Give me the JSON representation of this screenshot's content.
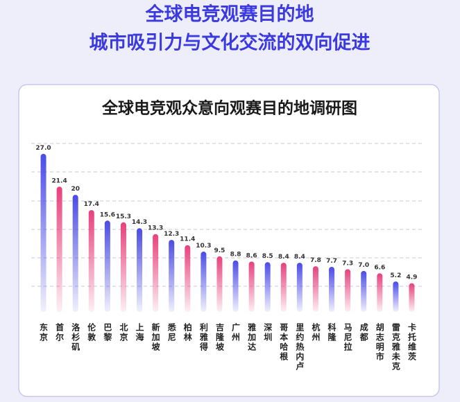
{
  "header": {
    "title_line1": "全球电竞观赛目的地",
    "title_line2": "城市吸引力与文化交流的双向促进"
  },
  "chart_data": {
    "type": "bar",
    "title": "全球电竞观众意向观赛目的地调研图",
    "categories": [
      "东京",
      "首尔",
      "洛杉矶",
      "伦敦",
      "巴黎",
      "北京",
      "上海",
      "新加坡",
      "悉尼",
      "柏林",
      "利雅得",
      "吉隆坡",
      "广州",
      "雅加达",
      "深圳",
      "哥本哈根",
      "里约热内卢",
      "杭州",
      "科隆",
      "马尼拉",
      "成都",
      "胡志明市",
      "雷克雅未克",
      "卡托维茨"
    ],
    "values": [
      27,
      21.4,
      20,
      17.4,
      15.6,
      15.3,
      14.3,
      13.3,
      12.3,
      11.4,
      10.3,
      9.5,
      8.8,
      8.6,
      8.5,
      8.4,
      8.4,
      7.8,
      7.7,
      7.3,
      7,
      6.6,
      5.2,
      4.9
    ],
    "value_labels": [
      "27.0",
      "21.4",
      "20",
      "17.4",
      "15.6",
      "15.3",
      "14.3",
      "13.3",
      "12.3",
      "11.4",
      "10.3",
      "9.5",
      "8.8",
      "8.6",
      "8.5",
      "8.4",
      "8.4",
      "7.8",
      "7.7",
      "7.3",
      "7.0",
      "6.6",
      "5.2",
      "4.9"
    ],
    "colors": [
      "#4a4be6",
      "#e8407c"
    ]
  }
}
